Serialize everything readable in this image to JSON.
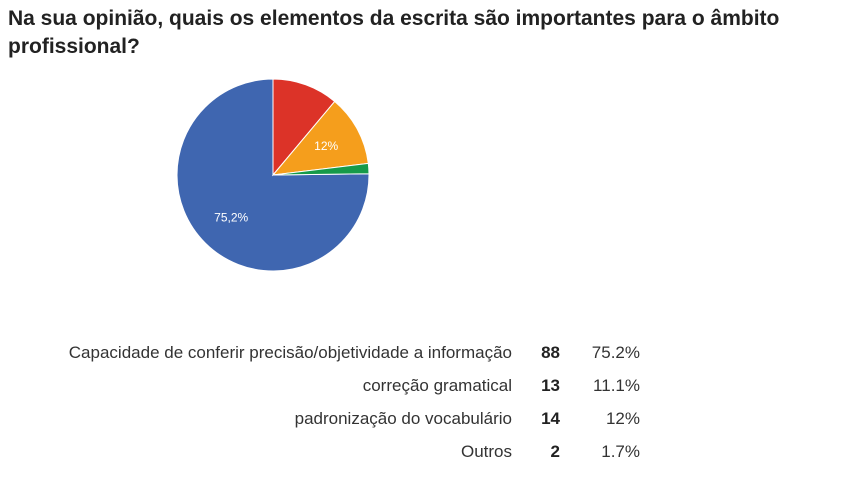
{
  "title": "Na sua opinião, quais os elementos da escrita são importantes para o âmbito profissional?",
  "chart_data": {
    "type": "pie",
    "slices": [
      {
        "label": "Capacidade de conferir precisão/objetividade a informação",
        "count": "88",
        "value": 88,
        "percent": "75.2%",
        "slice_label": "75,2%",
        "color": "#3f66b0"
      },
      {
        "label": "correção gramatical",
        "count": "13",
        "value": 13,
        "percent": "11.1%",
        "slice_label": "",
        "color": "#dc3328"
      },
      {
        "label": "padronização do vocabulário",
        "count": "14",
        "value": 14,
        "percent": "12%",
        "slice_label": "12%",
        "color": "#f59e1c"
      },
      {
        "label": "Outros",
        "count": "2",
        "value": 2,
        "percent": "1.7%",
        "slice_label": "",
        "color": "#169a4a"
      }
    ]
  }
}
